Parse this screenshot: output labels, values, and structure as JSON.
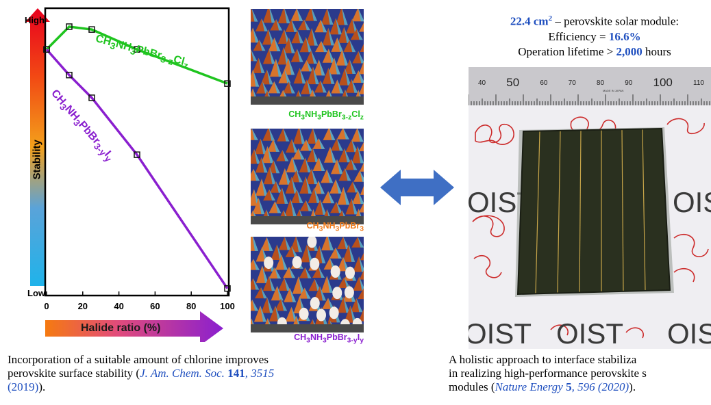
{
  "chart_data": {
    "type": "line",
    "x": [
      0,
      12.5,
      25,
      50,
      100
    ],
    "xticks": [
      "0",
      "20",
      "40",
      "60",
      "80",
      "100"
    ],
    "xlim": [
      0,
      100
    ],
    "xlabel": "Halide ratio (%)",
    "ylabel": "Stability",
    "y_high_label": "High",
    "y_low_label": "Low",
    "series": [
      {
        "name": "CH₃NH₃PbBr₃₋zClz",
        "color": "#1fc41f",
        "values": [
          0.86,
          0.94,
          0.93,
          0.86,
          0.74
        ]
      },
      {
        "name": "CH₃NH₃PbBr₃₋yIy",
        "color": "#8a1fcf",
        "values": [
          0.86,
          0.77,
          0.69,
          0.49,
          0.02
        ]
      }
    ],
    "grid": false
  },
  "surfaces": [
    {
      "label_main": "CH",
      "label_parts": [
        "CH",
        "3",
        "NH",
        "3",
        "PbBr",
        "3-z",
        "Cl",
        "z"
      ],
      "color": "#1fc41f"
    },
    {
      "label_parts": [
        "CH",
        "3",
        "NH",
        "3",
        "PbBr",
        "3"
      ],
      "color": "#f07a1a"
    },
    {
      "label_parts": [
        "CH",
        "3",
        "NH",
        "3",
        "PbBr",
        "3-y",
        "I",
        "y"
      ],
      "color": "#8a1fcf"
    }
  ],
  "left_caption": {
    "line1": "Incorporation of a suitable amount of chlorine improves",
    "line2_pre": "perovskite surface stability (",
    "line2_journal": "J. Am. Chem. Soc.",
    "line2_vol": "141",
    "line2_page": ", 3515",
    "line3_year": "(2019)",
    "line3_post": ")."
  },
  "right_title": {
    "area": "22.4 cm",
    "area_sup": "2",
    "rest1": " – perovskite solar module:",
    "eff_pre": "Efficiency = ",
    "eff_val": "16.6%",
    "life_pre": "Operation lifetime > ",
    "life_val": "2,000",
    "life_post": " hours"
  },
  "right_caption": {
    "line1": "A holistic approach to interface stabiliza",
    "line2": "in realizing high-performance perovskite s",
    "line3_pre": "modules (",
    "line3_journal": "Nature Energy",
    "line3_vol": "5",
    "line3_page": ", 596 (2020)",
    "line3_post": ")."
  },
  "photo": {
    "ruler_numbers": [
      "40",
      "50",
      "60",
      "70",
      "80",
      "90",
      "100",
      "110"
    ],
    "ruler_small": "MADE IN JAPAN",
    "watermark": "OIST"
  },
  "colors": {
    "arrow_blue": "#3f6fc4"
  }
}
